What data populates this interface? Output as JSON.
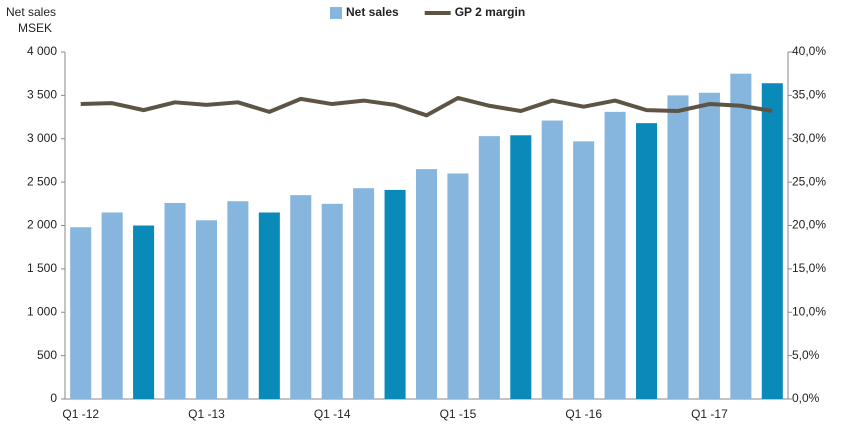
{
  "chart_data": {
    "type": "bar_line",
    "ylabel": [
      "Net sales",
      "MSEK"
    ],
    "categories": [
      "Q1 -12",
      null,
      null,
      null,
      "Q1 -13",
      null,
      null,
      null,
      "Q1 -14",
      null,
      null,
      null,
      "Q1 -15",
      null,
      null,
      null,
      "Q1 -16",
      null,
      null,
      null,
      "Q1 -17",
      null,
      null
    ],
    "series": [
      {
        "name": "Net sales",
        "type": "bar",
        "color": "#86b5dd",
        "colors": [
          "#86b5dd",
          "#86b5dd",
          "#0a8ab8",
          "#86b5dd",
          "#86b5dd",
          "#86b5dd",
          "#0a8ab8",
          "#86b5dd",
          "#86b5dd",
          "#86b5dd",
          "#0a8ab8",
          "#86b5dd",
          "#86b5dd",
          "#86b5dd",
          "#0a8ab8",
          "#86b5dd",
          "#86b5dd",
          "#86b5dd",
          "#0a8ab8",
          "#86b5dd",
          "#86b5dd",
          "#86b5dd",
          "#0a8ab8"
        ],
        "values": [
          1980,
          2150,
          2000,
          2260,
          2060,
          2280,
          2150,
          2350,
          2250,
          2430,
          2410,
          2650,
          2600,
          3030,
          3040,
          3210,
          2970,
          3310,
          3180,
          3500,
          3530,
          3750,
          3640
        ]
      },
      {
        "name": "GP 2 margin",
        "type": "line",
        "axis": "y2",
        "color": "#5e5443",
        "values": [
          34.0,
          34.1,
          33.3,
          34.2,
          33.9,
          34.2,
          33.1,
          34.6,
          34.0,
          34.4,
          33.9,
          32.7,
          34.7,
          33.8,
          33.2,
          34.4,
          33.7,
          34.4,
          33.3,
          33.2,
          34.0,
          33.8,
          33.2
        ]
      }
    ],
    "ylim": [
      0,
      4000
    ],
    "yticks": [
      0,
      500,
      {
        "value": 1000,
        "label": "1 000"
      },
      {
        "value": 1500,
        "label": "1 500"
      },
      {
        "value": 2000,
        "label": "2 000"
      },
      {
        "value": 2500,
        "label": "2 500"
      },
      {
        "value": 3000,
        "label": "3 000"
      },
      {
        "value": 3500,
        "label": "3 500"
      },
      {
        "value": 4000,
        "label": "4 000"
      }
    ],
    "y2lim": [
      0,
      40
    ],
    "y2ticks": [
      {
        "value": 0,
        "label": "0,0%"
      },
      {
        "value": 5,
        "label": "5,0%"
      },
      {
        "value": 10,
        "label": "10,0%"
      },
      {
        "value": 15,
        "label": "15,0%"
      },
      {
        "value": 20,
        "label": "20,0%"
      },
      {
        "value": 25,
        "label": "25,0%"
      },
      {
        "value": 30,
        "label": "30,0%"
      },
      {
        "value": 35,
        "label": "35,0%"
      },
      {
        "value": 40,
        "label": "40,0%"
      }
    ],
    "legend": "top"
  }
}
